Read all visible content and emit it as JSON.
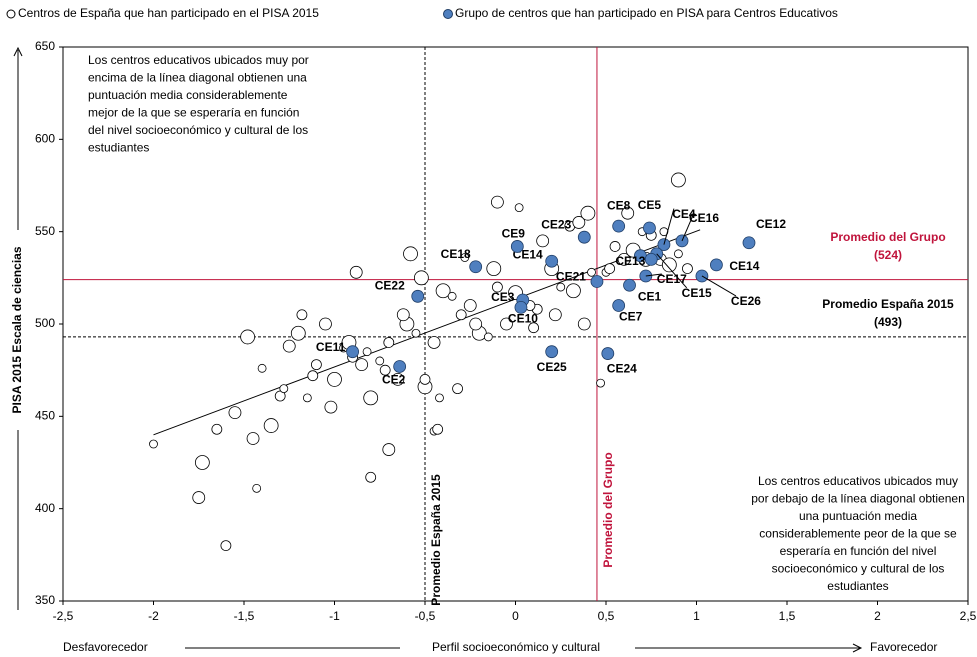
{
  "chart_data": {
    "type": "scatter",
    "legend": [
      "Centros de España que han participado en el PISA 2015",
      "Grupo de centros que han participado en PISA para Centros Educativos"
    ],
    "y_label": "PISA 2015 Escala de ciencias",
    "x_label": "Perfil socioeconómico y cultural",
    "x_left_label": "Desfavorecedor",
    "x_right_label": "Favorecedor",
    "xlim": [
      -2.5,
      2.5
    ],
    "ylim": [
      350,
      650
    ],
    "xticks": [
      {
        "value": -2.5,
        "label": "-2,5"
      },
      -2,
      {
        "value": -1.5,
        "label": "-1,5"
      },
      -1,
      {
        "value": -0.5,
        "label": "-0,5"
      },
      0,
      {
        "value": 0.5,
        "label": "0,5"
      },
      1,
      {
        "value": 1.5,
        "label": "1,5"
      },
      2,
      {
        "value": 2.5,
        "label": "2,5"
      }
    ],
    "yticks": [
      350,
      400,
      450,
      500,
      550,
      600,
      650
    ],
    "series": [
      {
        "name": "Centros de España que han participado en el PISA 2015",
        "color": "#ffffff",
        "stroke": "#000000",
        "x": [
          -2,
          -1.6,
          -1.75,
          -1.73,
          -1.43,
          -0.8,
          -0.7,
          -0.5,
          -0.45,
          -0.43,
          -0.1,
          0.9,
          0.47,
          -1.65,
          -1.55,
          -1.48,
          -1.4,
          -1.3,
          -1.25,
          -1.2,
          -1.15,
          -1.1,
          -1.05,
          -1.0,
          -0.95,
          -0.9,
          -0.85,
          -0.8,
          -0.75,
          -0.7,
          -0.65,
          -0.6,
          -0.55,
          -0.5,
          -0.45,
          -0.4,
          -0.35,
          -0.3,
          -0.25,
          -0.2,
          -0.15,
          -0.1,
          -0.05,
          0.0,
          0.05,
          0.1,
          0.15,
          0.2,
          0.25,
          0.3,
          0.35,
          0.4,
          0.5,
          0.55,
          0.6,
          0.65,
          0.7,
          0.75,
          0.8,
          0.85,
          0.9,
          0.95,
          -1.45,
          -1.35,
          -1.28,
          -1.12,
          -1.02,
          -0.92,
          -0.82,
          -0.72,
          -0.62,
          -0.52,
          -0.42,
          -0.32,
          -0.22,
          -0.12,
          0.02,
          0.12,
          0.22,
          0.32,
          0.42,
          0.52,
          0.62,
          0.72,
          0.82,
          -1.18,
          -0.88,
          -0.58,
          -0.28,
          0.08,
          0.38
        ],
        "values": [
          435,
          380,
          406,
          425,
          411,
          417,
          432,
          466,
          442,
          443,
          566,
          578,
          468,
          443,
          452,
          493,
          476,
          461,
          488,
          495,
          460,
          478,
          500,
          470,
          487,
          482,
          478,
          460,
          480,
          490,
          470,
          500,
          495,
          470,
          490,
          518,
          515,
          505,
          510,
          495,
          493,
          520,
          500,
          517,
          512,
          498,
          545,
          530,
          520,
          553,
          555,
          560,
          528,
          542,
          535,
          540,
          550,
          548,
          535,
          532,
          538,
          530,
          438,
          445,
          465,
          472,
          455,
          490,
          485,
          475,
          505,
          525,
          460,
          465,
          500,
          530,
          563,
          508,
          505,
          518,
          528,
          530,
          560,
          535,
          550,
          505,
          528,
          538,
          536,
          510,
          500
        ]
      },
      {
        "name": "Grupo de centros que han participado en PISA para Centros Educativos",
        "color": "#4f7fbf",
        "stroke": "#1f3d66",
        "x": [
          0.63,
          -0.64,
          0.04,
          0.57,
          0.82,
          0.74,
          0.57,
          0.03,
          0.92,
          0.69,
          1.11,
          1.29,
          -0.22,
          0.2,
          0.72,
          0.78,
          0.45,
          -0.54,
          1.03,
          -0.9,
          0.01,
          0.38,
          0.2,
          0.51,
          0.75
        ],
        "values": [
          521,
          477,
          513,
          510,
          543,
          552,
          553,
          509,
          545,
          537,
          532,
          544,
          531,
          534,
          526,
          538,
          523,
          515,
          526,
          485,
          542,
          547,
          485,
          484,
          535
        ],
        "labels": [
          "CE1",
          "CE2",
          "CE3",
          "CE7",
          "CE4",
          "CE5",
          "CE8",
          "CE10",
          "CE16",
          "CE13",
          "CE14",
          "CE12",
          "CE18",
          "CE14",
          "CE17",
          "CE15",
          "CE21",
          "CE22",
          "CE26",
          "CE11",
          "CE9",
          "CE23",
          "CE25",
          "CE24",
          "CE15"
        ]
      }
    ],
    "trendline": {
      "x": [
        -2,
        1.02
      ],
      "y": [
        440,
        551
      ]
    },
    "reference_lines": [
      {
        "axis": "y",
        "value": 524,
        "label": "Promedio del Grupo",
        "value_label": "(524)",
        "color": "#c0143c",
        "dashed": false
      },
      {
        "axis": "y",
        "value": 493,
        "label": "Promedio España 2015",
        "value_label": "(493)",
        "color": "#000000",
        "dashed": true
      },
      {
        "axis": "x",
        "value": 0.45,
        "label": "Promedio del Grupo",
        "color": "#c0143c",
        "dashed": false
      },
      {
        "axis": "x",
        "value": -0.5,
        "label": "Promedio España 2015",
        "color": "#000000",
        "dashed": true
      }
    ],
    "annotations": [
      [
        "Los centros educativos ubicados muy por",
        "encima de la línea diagonal obtienen una",
        "puntuación media considerablemente",
        "mejor de la que se esperaría en función",
        "del nivel socioeconómico y cultural de los",
        "estudiantes"
      ],
      [
        "Los centros educativos ubicados muy",
        "por debajo de la línea diagonal obtienen",
        "una puntuación media",
        "considerablemente peor de la que se",
        "esperaría en función del nivel",
        "socioeconómico y cultural de los",
        "estudiantes"
      ]
    ]
  }
}
